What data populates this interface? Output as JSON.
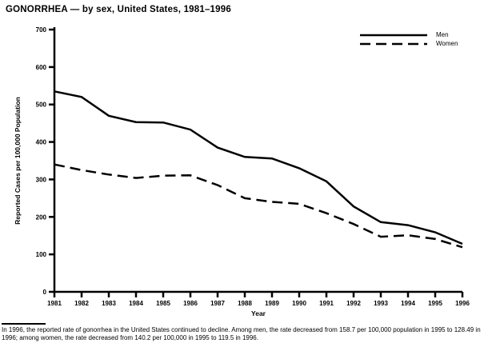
{
  "title": "GONORRHEA — by sex, United States, 1981–1996",
  "chart_data": {
    "type": "line",
    "title": "GONORRHEA — by sex, United States, 1981–1996",
    "xlabel": "Year",
    "ylabel": "Reported Cases per 100,000 Population",
    "categories": [
      "1981",
      "1982",
      "1983",
      "1984",
      "1985",
      "1986",
      "1987",
      "1988",
      "1989",
      "1990",
      "1991",
      "1992",
      "1993",
      "1994",
      "1995",
      "1996"
    ],
    "y_ticks": [
      0,
      100,
      200,
      300,
      400,
      500,
      600,
      700
    ],
    "ylim": [
      0,
      700
    ],
    "grid": false,
    "legend_position": "top-right",
    "series": [
      {
        "name": "Men",
        "style": "solid",
        "color": "#000000",
        "values": [
          535,
          520,
          470,
          453,
          452,
          433,
          385,
          360,
          356,
          330,
          295,
          228,
          186,
          178,
          159,
          128
        ]
      },
      {
        "name": "Women",
        "style": "dashed",
        "color": "#000000",
        "values": [
          340,
          325,
          313,
          304,
          310,
          311,
          285,
          250,
          240,
          235,
          210,
          181,
          147,
          151,
          141,
          119
        ]
      }
    ]
  },
  "footnote": "In 1996, the reported rate of gonorrhea in the United States continued to decline. Among men, the rate decreased from 158.7 per 100,000 population in 1995 to 128.49 in 1996; among women, the rate decreased from 140.2 per 100,000 in 1995 to 119.5 in 1996.",
  "colors": {
    "background": "#ffffff",
    "foreground": "#000000"
  }
}
